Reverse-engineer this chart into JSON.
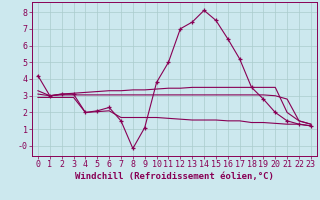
{
  "background_color": "#cce8ee",
  "grid_color": "#aacccc",
  "line_color": "#880055",
  "xlabel": "Windchill (Refroidissement éolien,°C)",
  "xlabel_fontsize": 6.5,
  "tick_fontsize": 6.0,
  "xlim": [
    -0.5,
    23.5
  ],
  "ylim": [
    -0.6,
    8.6
  ],
  "yticks": [
    0,
    1,
    2,
    3,
    4,
    5,
    6,
    7,
    8
  ],
  "ytick_labels": [
    "-0",
    "1",
    "2",
    "3",
    "4",
    "5",
    "6",
    "7",
    "8"
  ],
  "xticks": [
    0,
    1,
    2,
    3,
    4,
    5,
    6,
    7,
    8,
    9,
    10,
    11,
    12,
    13,
    14,
    15,
    16,
    17,
    18,
    19,
    20,
    21,
    22,
    23
  ],
  "line1_x": [
    0,
    1,
    2,
    3,
    4,
    5,
    6,
    7,
    8,
    9,
    10,
    11,
    12,
    13,
    14,
    15,
    16,
    17,
    18,
    19,
    20,
    21,
    22,
    23
  ],
  "line1_y": [
    4.2,
    3.0,
    3.1,
    3.1,
    2.0,
    2.1,
    2.3,
    1.5,
    -0.15,
    1.1,
    3.8,
    5.0,
    7.0,
    7.4,
    8.1,
    7.5,
    6.4,
    5.2,
    3.5,
    2.8,
    2.0,
    1.5,
    1.3,
    1.2
  ],
  "line2_x": [
    0,
    1,
    2,
    3,
    4,
    5,
    6,
    7,
    8,
    9,
    10,
    11,
    12,
    13,
    14,
    15,
    16,
    17,
    18,
    19,
    20,
    21,
    22,
    23
  ],
  "line2_y": [
    3.3,
    3.0,
    3.1,
    3.15,
    3.2,
    3.25,
    3.3,
    3.3,
    3.35,
    3.35,
    3.4,
    3.45,
    3.45,
    3.5,
    3.5,
    3.5,
    3.5,
    3.5,
    3.5,
    3.5,
    3.5,
    2.0,
    1.5,
    1.3
  ],
  "line3_x": [
    0,
    1,
    2,
    3,
    4,
    5,
    6,
    7,
    8,
    9,
    10,
    11,
    12,
    13,
    14,
    15,
    16,
    17,
    18,
    19,
    20,
    21,
    22,
    23
  ],
  "line3_y": [
    3.1,
    3.0,
    3.05,
    3.05,
    3.05,
    3.05,
    3.05,
    3.05,
    3.05,
    3.05,
    3.05,
    3.05,
    3.05,
    3.05,
    3.05,
    3.05,
    3.05,
    3.05,
    3.05,
    3.05,
    3.0,
    2.8,
    1.5,
    1.3
  ],
  "line4_x": [
    0,
    1,
    2,
    3,
    4,
    5,
    6,
    7,
    8,
    9,
    10,
    11,
    12,
    13,
    14,
    15,
    16,
    17,
    18,
    19,
    20,
    21,
    22,
    23
  ],
  "line4_y": [
    2.9,
    2.9,
    2.9,
    2.9,
    2.0,
    2.05,
    2.1,
    1.7,
    1.7,
    1.7,
    1.7,
    1.65,
    1.6,
    1.55,
    1.55,
    1.55,
    1.5,
    1.5,
    1.4,
    1.4,
    1.35,
    1.3,
    1.3,
    1.2
  ]
}
